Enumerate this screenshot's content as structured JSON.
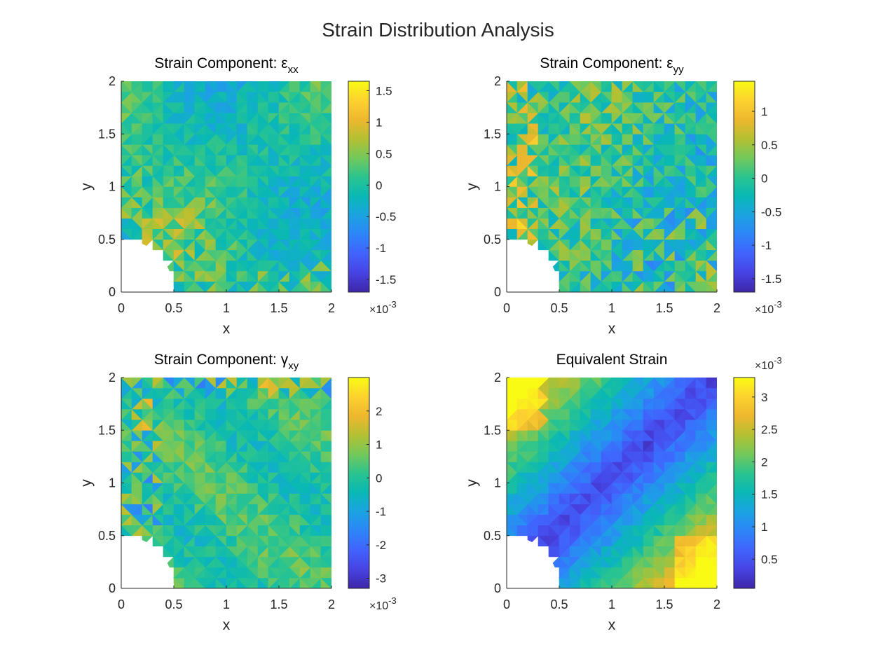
{
  "figure": {
    "title": "Strain Distribution Analysis"
  },
  "colormap": [
    "#3e26a8",
    "#4743e3",
    "#4163fd",
    "#2d85f8",
    "#1ba3e1",
    "#09b8b5",
    "#2ac48f",
    "#73c85b",
    "#b4c032",
    "#eeb72e",
    "#fcd22f",
    "#f9fb15"
  ],
  "hole": {
    "cx": 0,
    "cy": 0,
    "r": 0.5
  },
  "chart_data": [
    {
      "type": "heatmap",
      "title": "Strain Component: ε",
      "title_sub": "xx",
      "xlabel": "x",
      "ylabel": "y",
      "xlim": [
        0,
        2
      ],
      "ylim": [
        0,
        2
      ],
      "x_ticks": [
        "0",
        "0.5",
        "1",
        "1.5",
        "2"
      ],
      "y_ticks": [
        "0",
        "0.5",
        "1",
        "1.5",
        "2"
      ],
      "colorbar": {
        "range": [
          -1.7,
          1.65
        ],
        "ticks": [
          -1.5,
          -1,
          -0.5,
          0,
          0.5,
          1,
          1.5
        ],
        "tick_labels": [
          "-1.5",
          "-1",
          "-0.5",
          "0",
          "0.5",
          "1",
          "1.5"
        ],
        "exponent": "-3",
        "exponent_position": "bottom"
      },
      "field": "eps_xx",
      "field_range": [
        -1.7,
        1.65
      ]
    },
    {
      "type": "heatmap",
      "title": "Strain Component: ε",
      "title_sub": "yy",
      "xlabel": "x",
      "ylabel": "y",
      "xlim": [
        0,
        2
      ],
      "ylim": [
        0,
        2
      ],
      "x_ticks": [
        "0",
        "0.5",
        "1",
        "1.5",
        "2"
      ],
      "y_ticks": [
        "0",
        "0.5",
        "1",
        "1.5",
        "2"
      ],
      "colorbar": {
        "range": [
          -1.7,
          1.45
        ],
        "ticks": [
          -1.5,
          -1,
          -0.5,
          0,
          0.5,
          1
        ],
        "tick_labels": [
          "-1.5",
          "-1",
          "-0.5",
          "0",
          "0.5",
          "1"
        ],
        "exponent": "-3",
        "exponent_position": "bottom"
      },
      "field": "eps_yy",
      "field_range": [
        -1.7,
        1.45
      ]
    },
    {
      "type": "heatmap",
      "title": "Strain Component: γ",
      "title_sub": "xy",
      "xlabel": "x",
      "ylabel": "y",
      "xlim": [
        0,
        2
      ],
      "ylim": [
        0,
        2
      ],
      "x_ticks": [
        "0",
        "0.5",
        "1",
        "1.5",
        "2"
      ],
      "y_ticks": [
        "0",
        "0.5",
        "1",
        "1.5",
        "2"
      ],
      "colorbar": {
        "range": [
          -3.3,
          3.0
        ],
        "ticks": [
          -3,
          -2,
          -1,
          0,
          1,
          2
        ],
        "tick_labels": [
          "-3",
          "-2",
          "-1",
          "0",
          "1",
          "2"
        ],
        "exponent": "-3",
        "exponent_position": "bottom"
      },
      "field": "gam_xy",
      "field_range": [
        -3.3,
        3.0
      ]
    },
    {
      "type": "heatmap",
      "title": "Equivalent Strain",
      "title_sub": "",
      "xlabel": "x",
      "ylabel": "y",
      "xlim": [
        0,
        2
      ],
      "ylim": [
        0,
        2
      ],
      "x_ticks": [
        "0",
        "0.5",
        "1",
        "1.5",
        "2"
      ],
      "y_ticks": [
        "0",
        "0.5",
        "1",
        "1.5",
        "2"
      ],
      "colorbar": {
        "range": [
          0.05,
          3.3
        ],
        "ticks": [
          0.5,
          1,
          1.5,
          2,
          2.5,
          3
        ],
        "tick_labels": [
          "0.5",
          "1",
          "1.5",
          "2",
          "2.5",
          "3"
        ],
        "exponent": "-3",
        "exponent_position": "top"
      },
      "field": "eq",
      "field_range": [
        0.05,
        3.3
      ]
    }
  ]
}
